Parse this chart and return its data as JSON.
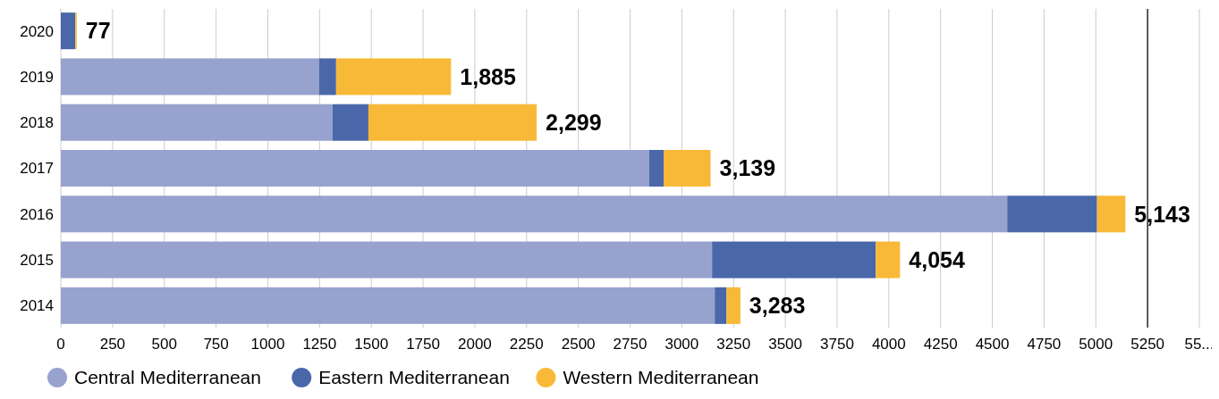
{
  "chart_data": {
    "type": "bar",
    "orientation": "horizontal",
    "stacked": true,
    "categories": [
      "2020",
      "2019",
      "2018",
      "2017",
      "2016",
      "2015",
      "2014"
    ],
    "series": [
      {
        "name": "Central Mediterranean",
        "color": "#98a2ce",
        "values": [
          0,
          1247,
          1312,
          2842,
          4572,
          3146,
          3159
        ]
      },
      {
        "name": "Eastern Mediterranean",
        "color": "#4a67aa",
        "values": [
          70,
          83,
          174,
          70,
          434,
          791,
          57
        ]
      },
      {
        "name": "Western Mediterranean",
        "color": "#f9b938",
        "values": [
          7,
          555,
          813,
          227,
          137,
          117,
          67
        ]
      }
    ],
    "totals": [
      "77",
      "1,885",
      "2,299",
      "3,139",
      "5,143",
      "4,054",
      "3,283"
    ],
    "xlim": [
      0,
      5500
    ],
    "xticks": [
      0,
      250,
      500,
      750,
      1000,
      1250,
      1500,
      1750,
      2000,
      2250,
      2500,
      2750,
      3000,
      3250,
      3500,
      3750,
      4000,
      4250,
      4500,
      4750,
      5000,
      5250,
      {
        "value": 5500,
        "label": "55..."
      }
    ],
    "ref_lines": [
      {
        "axis": "x",
        "value": 5250,
        "color": "#000000"
      }
    ],
    "grid": "x",
    "legend": "bottom left"
  }
}
